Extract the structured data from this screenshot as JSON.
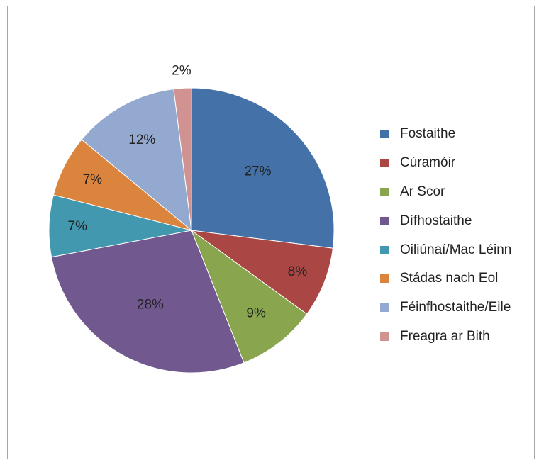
{
  "chart_data": {
    "type": "pie",
    "categories": [
      "Fostaithe",
      "Cúramóir",
      "Ar Scor",
      "Dífhostaithe",
      "Oiliúnaí/Mac Léinn",
      "Stádas nach Eol",
      "Féinfhostaithe/Eile",
      "Freagra ar Bith"
    ],
    "values": [
      27,
      8,
      9,
      28,
      7,
      7,
      12,
      2
    ],
    "data_labels": [
      "27%",
      "8%",
      "9%",
      "28%",
      "7%",
      "7%",
      "12%",
      "2%"
    ],
    "colors": [
      "#4472a8",
      "#aa4643",
      "#89a54e",
      "#71588f",
      "#4198af",
      "#db843d",
      "#93a9cf",
      "#d19392"
    ],
    "legend_position": "right",
    "title": ""
  }
}
